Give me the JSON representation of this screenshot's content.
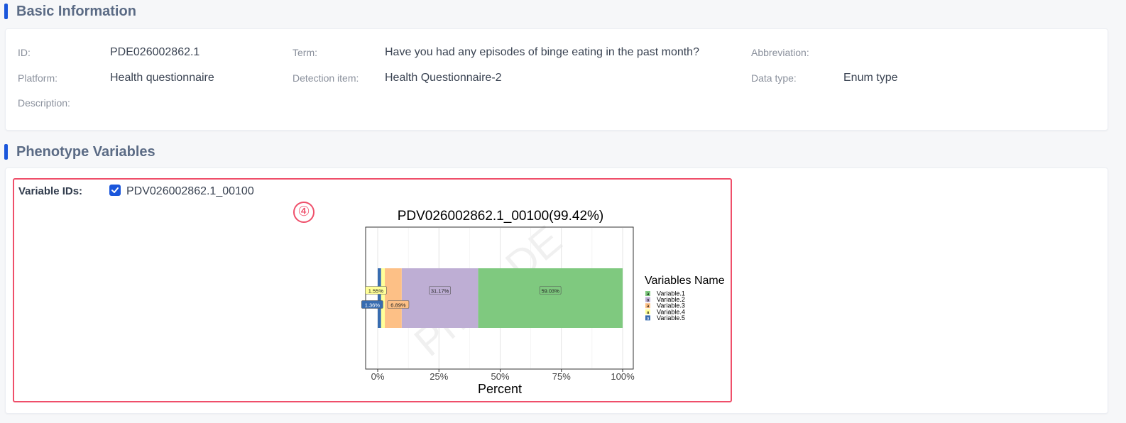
{
  "basic": {
    "title": "Basic Information",
    "fields": {
      "id": {
        "label": "ID:",
        "value": "PDE026002862.1"
      },
      "term": {
        "label": "Term:",
        "value": "Have you had any episodes of binge eating in the past month?"
      },
      "abbreviation": {
        "label": "Abbreviation:",
        "value": ""
      },
      "platform": {
        "label": "Platform:",
        "value": "Health questionnaire"
      },
      "detection_item": {
        "label": "Detection item:",
        "value": "Health Questionnaire-2"
      },
      "data_type": {
        "label": "Data type:",
        "value": "Enum type"
      },
      "description": {
        "label": "Description:",
        "value": ""
      }
    }
  },
  "phenotype": {
    "title": "Phenotype Variables",
    "variable_ids_label": "Variable IDs:",
    "variable_id": "PDV026002862.1_00100",
    "variable_checked": true,
    "annotation_marker": "④"
  },
  "watermark": "PhenoDE",
  "chart_data": {
    "type": "bar",
    "orientation": "horizontal",
    "stacked": true,
    "title": "PDV026002862.1_00100(99.42%)",
    "xlabel": "Percent",
    "ylabel": "",
    "xlim": [
      0,
      100
    ],
    "xticks": [
      "0%",
      "25%",
      "50%",
      "75%",
      "100%"
    ],
    "grid": true,
    "legend_title": "Variables Name",
    "legend_position": "right",
    "series": [
      {
        "name": "Variable.1",
        "value": 59.03,
        "label": "59.03%",
        "color": "#7fc97f"
      },
      {
        "name": "Variable.2",
        "value": 31.17,
        "label": "31.17%",
        "color": "#beaed4"
      },
      {
        "name": "Variable.3",
        "value": 6.89,
        "label": "6.89%",
        "color": "#fdc086"
      },
      {
        "name": "Variable.4",
        "value": 1.55,
        "label": "1.55%",
        "color": "#ffff99"
      },
      {
        "name": "Variable.5",
        "value": 1.36,
        "label": "1.36%",
        "color": "#386cb0"
      }
    ]
  }
}
